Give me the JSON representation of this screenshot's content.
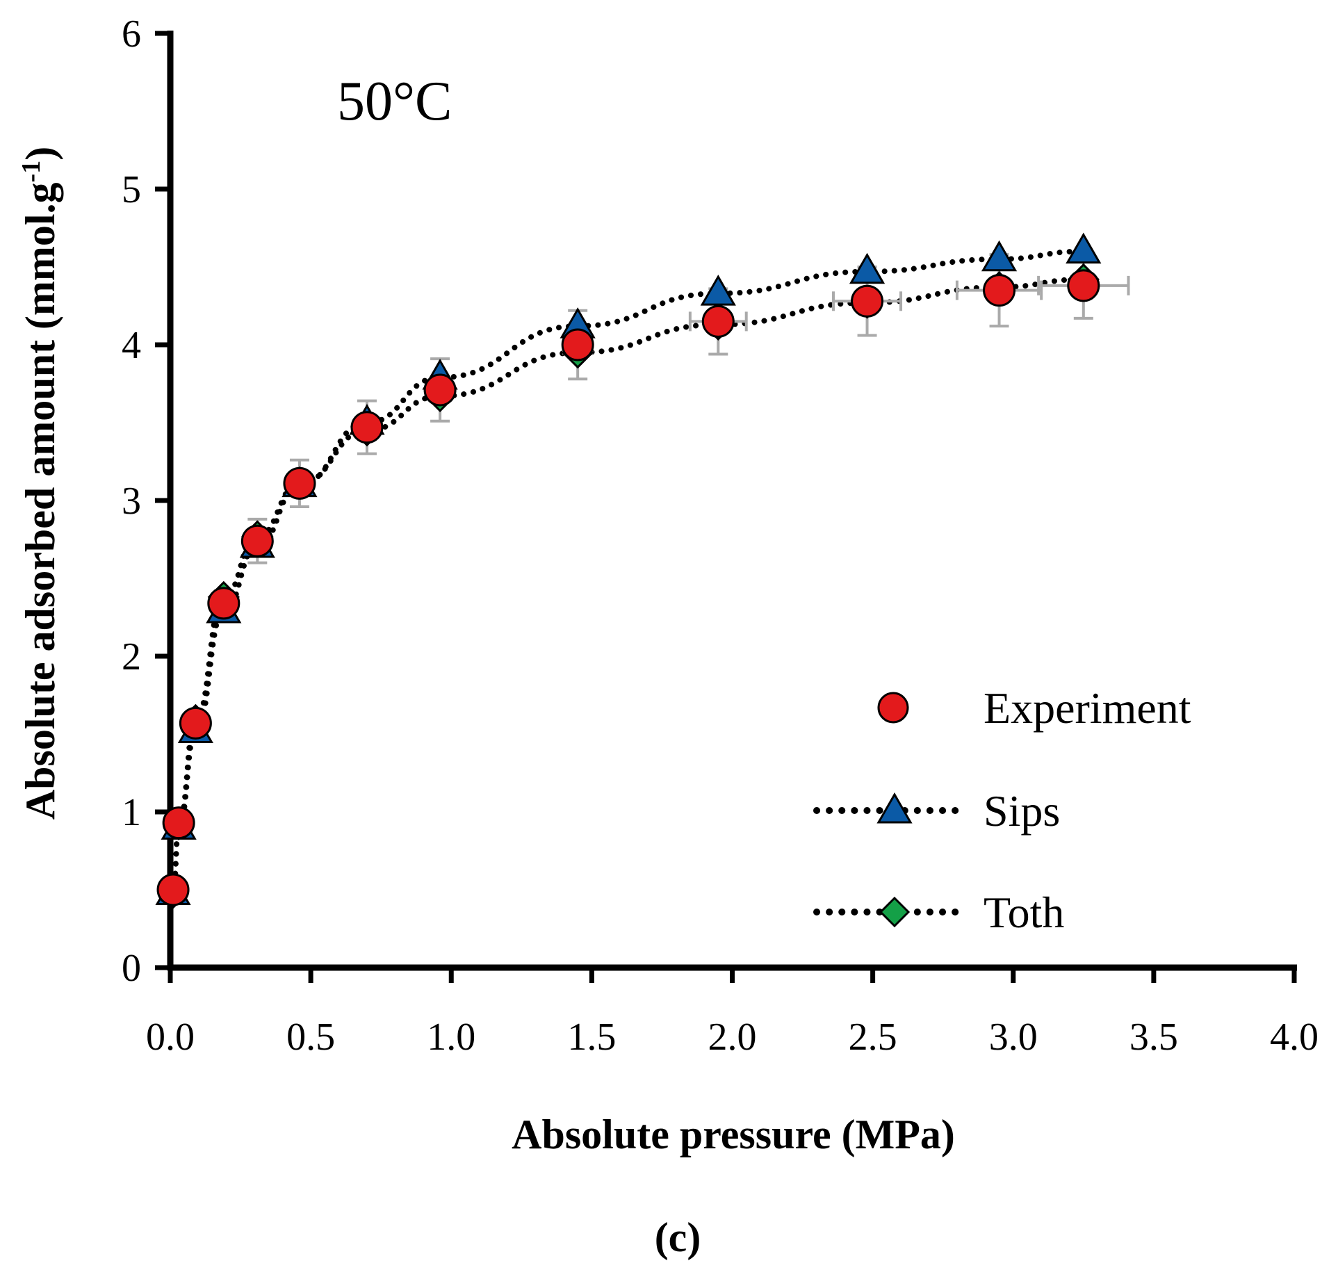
{
  "chart_data": {
    "type": "scatter",
    "annotation": "50°C",
    "caption": "(c)",
    "xlabel": "Absolute pressure (MPa)",
    "ylabel_main": "Absolute adsorbed amount (mmol.g",
    "ylabel_sup": "-1",
    "ylabel_close": ")",
    "xlim": [
      0.0,
      4.0
    ],
    "ylim": [
      0,
      6
    ],
    "x_ticks": [
      "0.0",
      "0.5",
      "1.0",
      "1.5",
      "2.0",
      "2.5",
      "3.0",
      "3.5",
      "4.0"
    ],
    "y_ticks": [
      "0",
      "1",
      "2",
      "3",
      "4",
      "5",
      "6"
    ],
    "legend": [
      "Experiment",
      "Sips",
      "Toth"
    ],
    "colors": {
      "experiment": "#e31a1c",
      "sips": "#0b5aa6",
      "toth": "#14a047",
      "fit_line": "#000000",
      "error_bar": "#aaaaaa"
    },
    "series": [
      {
        "name": "Experiment",
        "marker": "circle",
        "x": [
          0.01,
          0.03,
          0.09,
          0.19,
          0.31,
          0.46,
          0.7,
          0.96,
          1.45,
          1.95,
          2.48,
          2.95,
          3.25
        ],
        "y": [
          0.5,
          0.93,
          1.57,
          2.34,
          2.74,
          3.11,
          3.47,
          3.71,
          4.0,
          4.15,
          4.28,
          4.35,
          4.38
        ],
        "yerr": [
          0.03,
          0.06,
          0.06,
          0.08,
          0.14,
          0.15,
          0.17,
          0.2,
          0.22,
          0.21,
          0.22,
          0.23,
          0.21
        ],
        "xerr": [
          0.0,
          0.0,
          0.0,
          0.0,
          0.0,
          0.0,
          0.0,
          0.0,
          0.05,
          0.1,
          0.12,
          0.15,
          0.16
        ]
      },
      {
        "name": "Sips",
        "marker": "triangle",
        "line": "dotted",
        "x": [
          0.01,
          0.03,
          0.09,
          0.19,
          0.31,
          0.46,
          0.7,
          0.96,
          1.45,
          1.95,
          2.48,
          2.95,
          3.25
        ],
        "y": [
          0.48,
          0.9,
          1.52,
          2.29,
          2.71,
          3.1,
          3.5,
          3.79,
          4.12,
          4.33,
          4.47,
          4.55,
          4.6
        ]
      },
      {
        "name": "Toth",
        "marker": "diamond",
        "line": "dotted",
        "x": [
          0.01,
          0.03,
          0.09,
          0.19,
          0.31,
          0.46,
          0.7,
          0.96,
          1.45,
          1.95,
          2.48,
          2.95,
          3.25
        ],
        "y": [
          0.48,
          0.92,
          1.59,
          2.38,
          2.77,
          3.11,
          3.45,
          3.67,
          3.95,
          4.13,
          4.27,
          4.37,
          4.42
        ]
      }
    ]
  }
}
